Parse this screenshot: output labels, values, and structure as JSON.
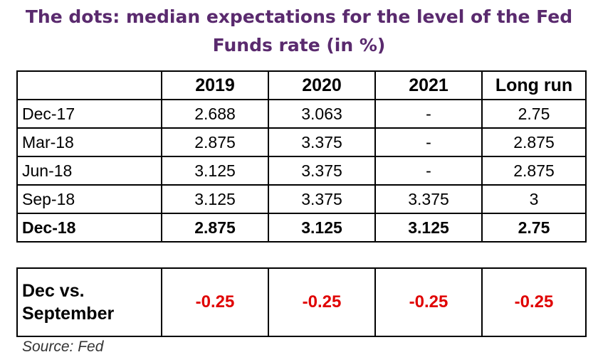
{
  "chart_data": {
    "type": "table",
    "title_lines": [
      "The dots: median expectations for the level of the Fed",
      "Funds rate (in %)"
    ],
    "columns": [
      "",
      "2019",
      "2020",
      "2021",
      "Long run"
    ],
    "rows": [
      {
        "label": "Dec-17",
        "values": [
          "2.688",
          "3.063",
          "-",
          "2.75"
        ]
      },
      {
        "label": "Mar-18",
        "values": [
          "2.875",
          "3.375",
          "-",
          "2.875"
        ]
      },
      {
        "label": "Jun-18",
        "values": [
          "3.125",
          "3.375",
          "-",
          "2.875"
        ]
      },
      {
        "label": "Sep-18",
        "values": [
          "3.125",
          "3.375",
          "3.375",
          "3"
        ]
      },
      {
        "label": "Dec-18",
        "values": [
          "2.875",
          "3.125",
          "3.125",
          "2.75"
        ]
      }
    ],
    "difference_row": {
      "label_lines": [
        "Dec vs.",
        "September"
      ],
      "values": [
        "-0.25",
        "-0.25",
        "-0.25",
        "-0.25"
      ]
    },
    "source": "Source: Fed",
    "colors": {
      "title": "#5a2a6e",
      "negative": "#e00000"
    }
  }
}
